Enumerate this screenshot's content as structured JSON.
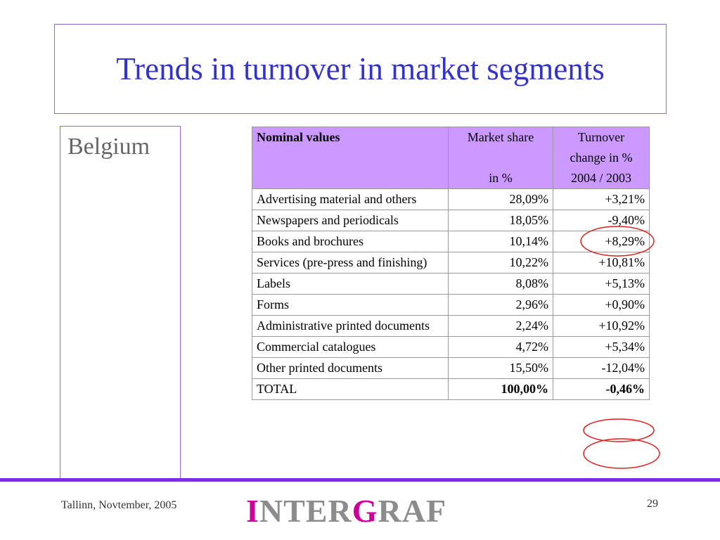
{
  "title": "Trends in turnover in market segments",
  "sidebar": {
    "label": "Belgium"
  },
  "table": {
    "header": [
      [
        "Nominal values"
      ],
      [
        "Market share",
        "in %"
      ],
      [
        "Turnover",
        "change in %",
        "2004  /  2003"
      ]
    ],
    "rows": [
      [
        "Advertising material and others",
        "28,09%",
        "+3,21%"
      ],
      [
        "Newspapers and periodicals",
        "18,05%",
        "-9,40%"
      ],
      [
        "Books and brochures",
        "10,14%",
        "+8,29%"
      ],
      [
        "Services (pre-press and finishing)",
        "10,22%",
        "+10,81%"
      ],
      [
        "Labels",
        "8,08%",
        "+5,13%"
      ],
      [
        "Forms",
        "2,96%",
        "+0,90%"
      ],
      [
        "Administrative printed documents",
        "2,24%",
        "+10,92%"
      ],
      [
        "Commercial catalogues",
        "4,72%",
        "+5,34%"
      ],
      [
        "Other printed documents",
        "15,50%",
        "-12,04%"
      ],
      [
        "TOTAL",
        "100,00%",
        "-0,46%"
      ]
    ]
  },
  "footer": {
    "place_date": "Tallinn, Novtember, 2005",
    "page_number": "29",
    "logo": [
      "I",
      "NTER",
      "G",
      "RAF"
    ]
  }
}
